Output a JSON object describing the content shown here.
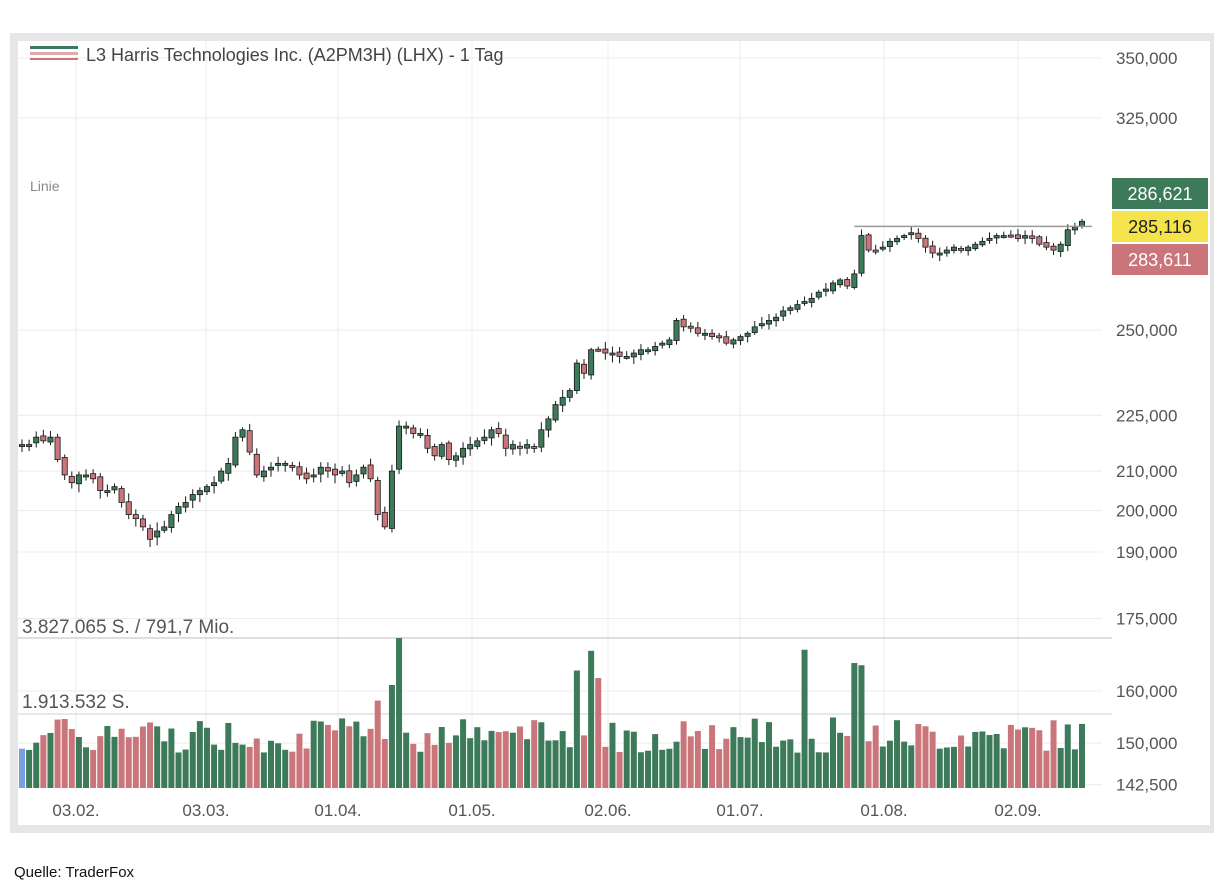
{
  "chart_data": {
    "type": "candlestick",
    "title": "L3 Harris Technologies Inc. (A2PM3H) (LHX) - 1 Tag",
    "chart_mode_label": "Linie",
    "y_axis": {
      "scale": "log",
      "tick_labels": [
        "350,000",
        "325,000",
        "250,000",
        "225,000",
        "210,000",
        "200,000",
        "190,000",
        "175,000",
        "160,000",
        "150,000",
        "142,500"
      ],
      "tick_values": [
        350,
        325,
        250,
        225,
        210,
        200,
        190,
        175,
        160,
        150,
        142.5
      ]
    },
    "x_axis": {
      "tick_labels": [
        "03.02.",
        "03.03.",
        "01.04.",
        "01.05.",
        "02.06.",
        "01.07.",
        "01.08.",
        "02.09."
      ]
    },
    "price_badges": [
      {
        "label": "286,621",
        "color": "#3d7a5a",
        "text_color": "#ffffff"
      },
      {
        "label": "285,116",
        "color": "#f4e34a",
        "text_color": "#222222"
      },
      {
        "label": "283,611",
        "color": "#c9757a",
        "text_color": "#ffffff"
      }
    ],
    "reference_line": {
      "value": 284.2,
      "from": "22.07.",
      "to": "12.09."
    },
    "volume": {
      "labels": [
        "3.827.065 S. / 791,7 Mio.",
        "1.913.532 S."
      ],
      "label_values": [
        3827065,
        1913532
      ],
      "up_color": "#3d7a5a",
      "down_color": "#c9757a"
    },
    "approx_closes": [
      217,
      217,
      219,
      218,
      219,
      213,
      209,
      207,
      209,
      209,
      208,
      205,
      205,
      206,
      202,
      199,
      198,
      196,
      193,
      195,
      196,
      199,
      201,
      202,
      204,
      205,
      206,
      207,
      210,
      212,
      219,
      221,
      215,
      209,
      210,
      211,
      212,
      212,
      211,
      209,
      208,
      209,
      211,
      210,
      209,
      210,
      207,
      209,
      211,
      208,
      199,
      196,
      210,
      222,
      222,
      220,
      220,
      216,
      214,
      217,
      213,
      214,
      216,
      217,
      218,
      219,
      221,
      220,
      216,
      217,
      216,
      217,
      216,
      221,
      224,
      228,
      230,
      232,
      240,
      237,
      244,
      244,
      243,
      243,
      242,
      242,
      243,
      244,
      244,
      245,
      246,
      247,
      253,
      251,
      251,
      249,
      249,
      248,
      248,
      246,
      247,
      248,
      249,
      251,
      252,
      253,
      254,
      256,
      257,
      258,
      259,
      260,
      262,
      263,
      265,
      266,
      264,
      268,
      281,
      276,
      276,
      277,
      279,
      280,
      281,
      282,
      280,
      277,
      275,
      275,
      276,
      277,
      276,
      277,
      278,
      279,
      280,
      281,
      281,
      281,
      280,
      281,
      280,
      278,
      277,
      276,
      278,
      283,
      284,
      286
    ],
    "source_label": "Quelle: TraderFox",
    "colors": {
      "up": "#3d7a5a",
      "down": "#c9757a",
      "grid": "#ececec",
      "frame": "#e6e6e6",
      "text": "#555555"
    }
  }
}
